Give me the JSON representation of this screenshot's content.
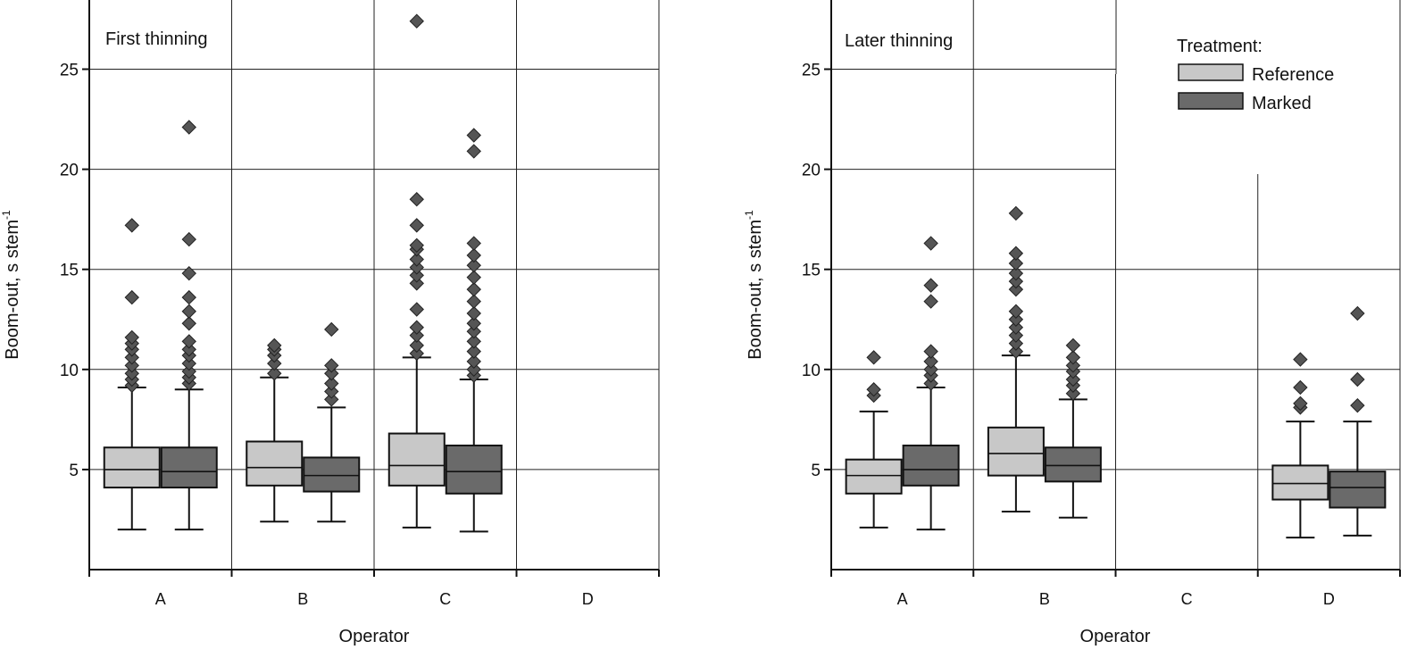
{
  "colors": {
    "reference": "#c8c8c8",
    "marked": "#6a6a6a",
    "axis": "#111111",
    "grid": "#222222"
  },
  "legend": {
    "title": "Treatment:",
    "items": [
      {
        "label": "Reference",
        "color": "#c8c8c8"
      },
      {
        "label": "Marked",
        "color": "#6a6a6a"
      }
    ],
    "placement": "top-right of right panel"
  },
  "chart_data": [
    {
      "type": "box",
      "panel_label": "First thinning",
      "xlabel": "Operator",
      "ylabel": "Boom-out, s stem",
      "ylabel_superscript": "-1",
      "ylim": [
        0,
        27.5
      ],
      "yticks": [
        5,
        10,
        15,
        20,
        25
      ],
      "grid": true,
      "categories": [
        "A",
        "B",
        "C",
        "D"
      ],
      "series": [
        {
          "name": "Reference",
          "boxes": [
            {
              "category": "A",
              "min": 2.0,
              "q1": 4.1,
              "median": 5.0,
              "q3": 6.1,
              "max": 9.1,
              "outliers": [
                9.2,
                9.5,
                9.8,
                10.2,
                10.6,
                11.0,
                11.3,
                11.6,
                13.6,
                17.2
              ]
            },
            {
              "category": "B",
              "min": 2.4,
              "q1": 4.2,
              "median": 5.1,
              "q3": 6.4,
              "max": 9.6,
              "outliers": [
                9.8,
                10.3,
                10.7,
                11.0,
                11.2
              ]
            },
            {
              "category": "C",
              "min": 2.1,
              "q1": 4.2,
              "median": 5.2,
              "q3": 6.8,
              "max": 10.6,
              "outliers": [
                10.8,
                11.2,
                11.7,
                12.1,
                13.0,
                14.3,
                14.7,
                15.1,
                15.5,
                16.0,
                16.2,
                17.2,
                18.5,
                27.4
              ]
            },
            {
              "category": "D",
              "absent": true
            }
          ]
        },
        {
          "name": "Marked",
          "boxes": [
            {
              "category": "A",
              "min": 2.0,
              "q1": 4.1,
              "median": 4.9,
              "q3": 6.1,
              "max": 9.0,
              "outliers": [
                9.3,
                9.6,
                9.9,
                10.3,
                10.7,
                11.0,
                11.4,
                12.3,
                12.9,
                13.6,
                14.8,
                16.5,
                22.1
              ]
            },
            {
              "category": "B",
              "min": 2.4,
              "q1": 3.9,
              "median": 4.7,
              "q3": 5.6,
              "max": 8.1,
              "outliers": [
                8.5,
                8.9,
                9.3,
                9.8,
                10.2,
                12.0
              ]
            },
            {
              "category": "C",
              "min": 1.9,
              "q1": 3.8,
              "median": 4.9,
              "q3": 6.2,
              "max": 9.5,
              "outliers": [
                9.7,
                10.0,
                10.4,
                10.9,
                11.4,
                11.9,
                12.3,
                12.8,
                13.4,
                14.0,
                14.6,
                15.2,
                15.7,
                16.3,
                20.9,
                21.7
              ]
            },
            {
              "category": "D",
              "absent": true
            }
          ]
        }
      ]
    },
    {
      "type": "box",
      "panel_label": "Later thinning",
      "xlabel": "Operator",
      "ylabel": "Boom-out, s stem",
      "ylabel_superscript": "-1",
      "ylim": [
        0,
        27.5
      ],
      "yticks": [
        5,
        10,
        15,
        20,
        25
      ],
      "grid": true,
      "categories": [
        "A",
        "B",
        "C",
        "D"
      ],
      "series": [
        {
          "name": "Reference",
          "boxes": [
            {
              "category": "A",
              "min": 2.1,
              "q1": 3.8,
              "median": 4.7,
              "q3": 5.5,
              "max": 7.9,
              "outliers": [
                8.7,
                9.0,
                10.6
              ]
            },
            {
              "category": "B",
              "min": 2.9,
              "q1": 4.7,
              "median": 5.8,
              "q3": 7.1,
              "max": 10.7,
              "outliers": [
                10.9,
                11.3,
                11.7,
                12.1,
                12.5,
                12.9,
                14.0,
                14.4,
                14.8,
                15.3,
                15.8,
                17.8
              ]
            },
            {
              "category": "C",
              "absent": true
            },
            {
              "category": "D",
              "min": 1.6,
              "q1": 3.5,
              "median": 4.3,
              "q3": 5.2,
              "max": 7.4,
              "outliers": [
                8.1,
                8.3,
                9.1,
                10.5
              ]
            }
          ]
        },
        {
          "name": "Marked",
          "boxes": [
            {
              "category": "A",
              "min": 2.0,
              "q1": 4.2,
              "median": 5.0,
              "q3": 6.2,
              "max": 9.1,
              "outliers": [
                9.3,
                9.7,
                10.0,
                10.4,
                10.9,
                13.4,
                14.2,
                16.3
              ]
            },
            {
              "category": "B",
              "min": 2.6,
              "q1": 4.4,
              "median": 5.2,
              "q3": 6.1,
              "max": 8.5,
              "outliers": [
                8.8,
                9.2,
                9.5,
                9.9,
                10.2,
                10.6,
                11.2
              ]
            },
            {
              "category": "C",
              "absent": true
            },
            {
              "category": "D",
              "min": 1.7,
              "q1": 3.1,
              "median": 4.1,
              "q3": 4.9,
              "max": 7.4,
              "outliers": [
                8.2,
                9.5,
                12.8
              ]
            }
          ]
        }
      ]
    }
  ]
}
